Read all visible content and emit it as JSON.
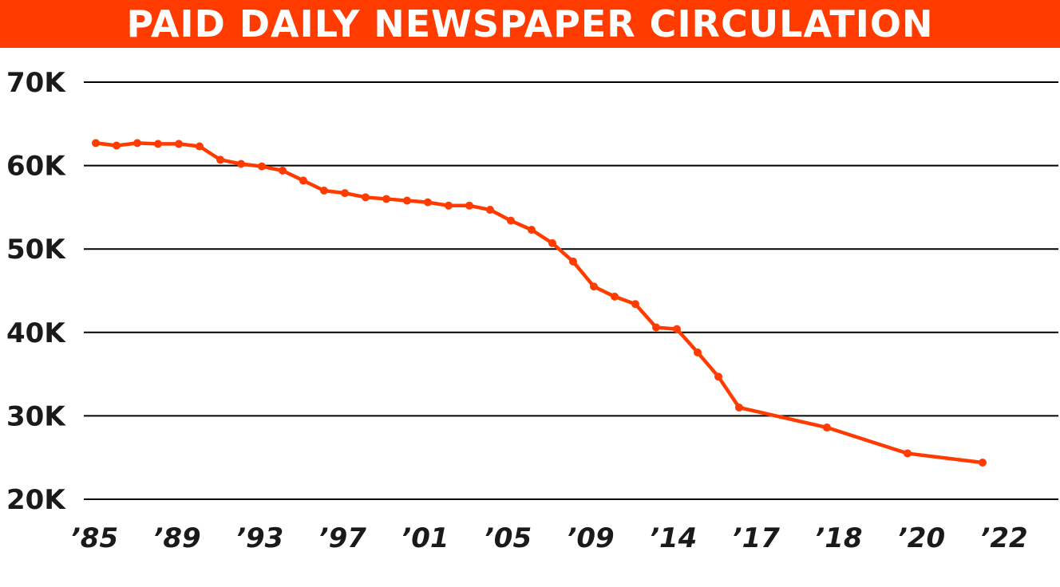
{
  "chart_data": {
    "type": "line",
    "title": "PAID DAILY NEWSPAPER CIRCULATION",
    "xlabel": "",
    "ylabel": "",
    "ylim": [
      20000,
      70000
    ],
    "y_ticks": [
      20000,
      30000,
      40000,
      50000,
      60000,
      70000
    ],
    "y_tick_labels": [
      "20K",
      "30K",
      "40K",
      "50K",
      "60K",
      "70K"
    ],
    "x_tick_labels": [
      "’85",
      "’89",
      "’93",
      "’97",
      "’01",
      "’05",
      "’09",
      "’14",
      "’17",
      "’18",
      "’20",
      "’22"
    ],
    "grid": true,
    "colors": {
      "line": "#ff3b00",
      "title_bg": "#ff3b00",
      "grid": "#000000",
      "text": "#1a1a1a"
    },
    "series": [
      {
        "values": [
          62700,
          62400,
          62700,
          62600,
          62600,
          62300,
          60700,
          60200,
          59900,
          59400,
          58200,
          57000,
          56700,
          56200,
          56000,
          55800,
          55600,
          55200,
          55200,
          54700,
          53400,
          52300,
          50700,
          48500,
          45500,
          44300,
          43400,
          40600,
          40400,
          37600,
          34700,
          31000,
          28600,
          25500,
          24400
        ]
      }
    ]
  }
}
